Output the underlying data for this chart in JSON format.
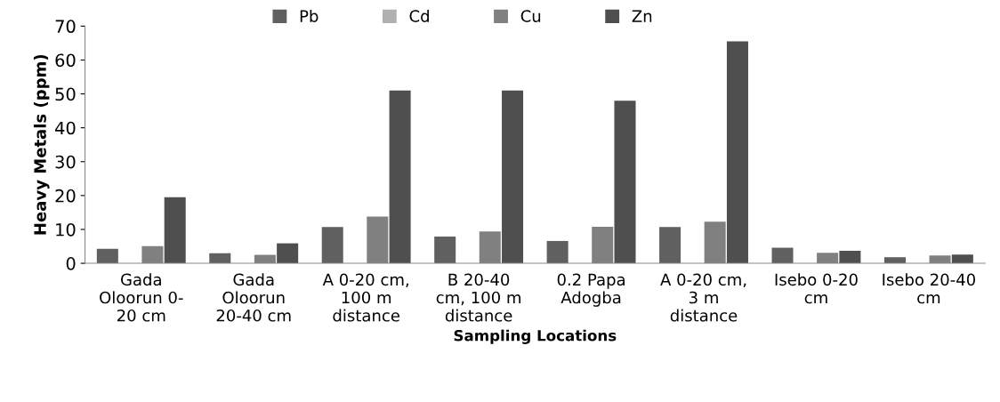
{
  "chart_data": {
    "type": "bar",
    "xlabel": "Sampling Locations",
    "ylabel": "Heavy Metals (ppm)",
    "categories": [
      "Gada\nOloorun 0-\n20 cm",
      "Gada\nOloorun\n20-40 cm",
      "A 0-20 cm,\n100 m\ndistance",
      "B 20-40\ncm, 100 m\ndistance",
      "0.2 Papa\nAdogba",
      "A 0-20 cm,\n3 m\ndistance",
      "Isebo 0-20\ncm",
      "Isebo 20-40\ncm"
    ],
    "series": [
      {
        "name": "Pb",
        "color": "#606060",
        "values": [
          4.3,
          3.0,
          10.7,
          7.9,
          6.6,
          10.7,
          4.6,
          1.8
        ]
      },
      {
        "name": "Cd",
        "color": "#b0b0b0",
        "values": [
          0,
          0,
          0,
          0,
          0,
          0,
          0,
          0
        ]
      },
      {
        "name": "Cu",
        "color": "#808080",
        "values": [
          5.1,
          2.5,
          13.8,
          9.4,
          10.8,
          12.3,
          3.1,
          2.3
        ]
      },
      {
        "name": "Zn",
        "color": "#4f4f4f",
        "values": [
          19.5,
          5.9,
          51,
          51,
          48,
          65.5,
          3.7,
          2.6
        ]
      }
    ],
    "ylim": [
      0,
      70
    ],
    "yticks": [
      0,
      10,
      20,
      30,
      40,
      50,
      60,
      70
    ],
    "grid": false,
    "legend": "top"
  }
}
